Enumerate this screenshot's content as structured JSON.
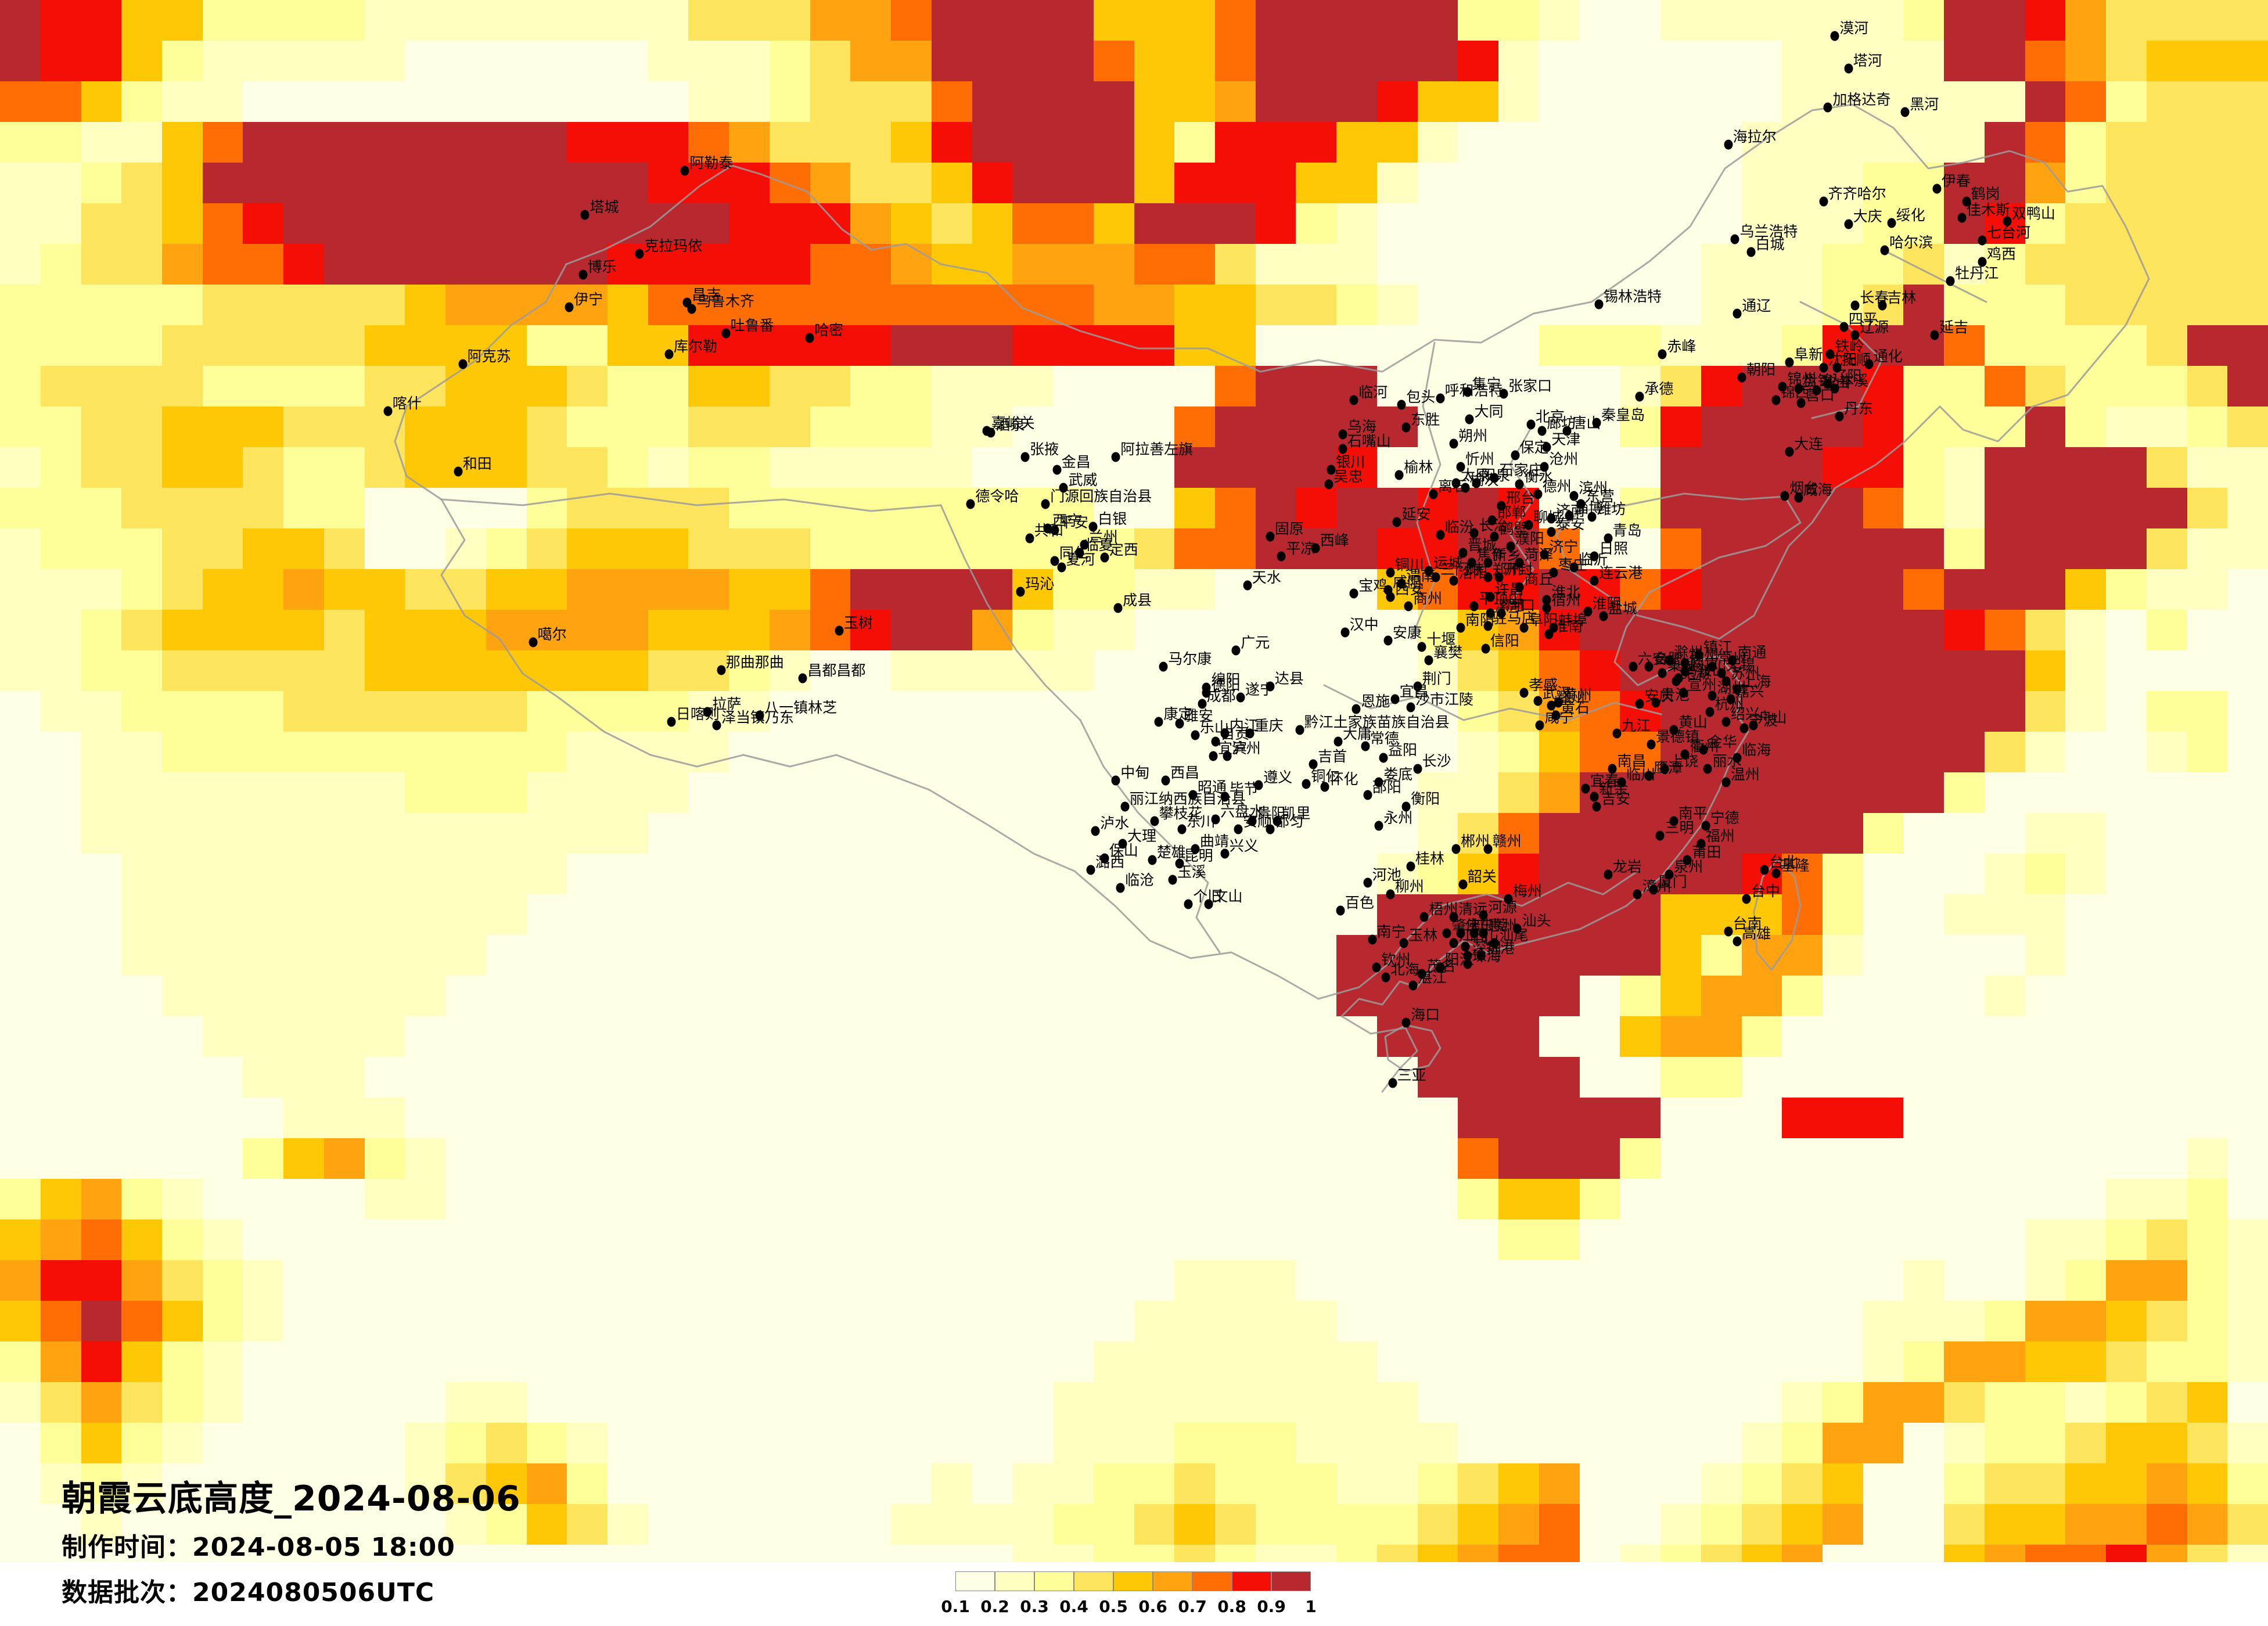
{
  "header": {
    "title": "朝霞云底高度_2024-08-06",
    "made_time": "制作时间：2024-08-05 18:00",
    "batch": "数据批次：2024080506UTC"
  },
  "legend": {
    "ticks": [
      "0.1",
      "0.2",
      "0.3",
      "0.4",
      "0.5",
      "0.6",
      "0.7",
      "0.8",
      "0.9",
      "1"
    ],
    "colors": [
      "#FFFFE6",
      "#FFFFC2",
      "#FFFF99",
      "#FFE45E",
      "#FFC807",
      "#FFA311",
      "#FF6D05",
      "#F50E05",
      "#B7292E"
    ]
  },
  "map": {
    "border_color": "#9B9B9B",
    "white": "#FFFFFF",
    "palette": [
      "#FFFFE6",
      "#FFFFC2",
      "#FFFF99",
      "#FFE45E",
      "#FFC807",
      "#FFA311",
      "#FF6D05",
      "#F50E05",
      "#B7292E"
    ],
    "grid_cols": 56,
    "grid_rows": 40,
    "grid": [
      "87744222211111111333556888844468888822100111111288753333",
      "87742111110000001112355888864468888871000000111188653444",
      "66421100000000000112333688884458887441000000111111862333",
      "22114688888888777653334788884277744100000001111118623333",
      "11234888888888887776533478884777441000000001112288523333",
      "11334678888888888877754346648887210000000001112287233333",
      "12335667888888877777665445556631110000000011122312333333",
      "22222333334555546666666666655443321000000011123822233333",
      "22223333344442244777778887777440000000222111278862222388",
      "23333222233444322443322111000068880000001378887226322238",
      "22334443334443222333222110000688888000002788887222821123",
      "12334432234443321221111100000888870000000888877218888311",
      "22233332200002333322222222200468788787002888886218888831",
      "12223344300123444333222222223668887788600688888828888311",
      "11123445443344555544688884221100004677876788888688842110",
      "11234444344455554445678852110000000245788888888876310200",
      "11223333344444443321001111100000000134678888888888410000",
      "01122223333332222110000000000000000023567888888888310220",
      "00112222222222111100000000000000000012466888888883100120",
      "00111111112221111000000000000000000113588888888820000000",
      "00111111111111110000000000000000000136888888882000110000",
      "00011111111111000000000000000000001247888887620001210000",
      "00011111111110000000000000000000008888888444620011100000",
      "00011111111100000000000000000000088888888425510000100000",
      "00001111111000000000000000000000088888802455200001000000",
      "00000111110000000000000000000000008888004552000000000000",
      "00000011100000000000000000000000000888800220000000000000",
      "00000001110000000000000000000000000088888000777000000000",
      "00000024521000000000000000000000000068882000000000000010",
      "24521000011000000000000000000000000024420000000000001120",
      "45642100000000000000000000000000000002200000000000112321",
      "57753210000000000000000000000111000000000000000100125521",
      "46864210000000000000000000001111100000000000001112554321",
      "25742100000000000000000000011111110000000000001255443221",
      "13532100000110000000000000111111111000000000125532212340",
      "02421000001232100000000000111222111100000001255012234431",
      "01210000001345200000000101122322211234500012340023344542",
      "00100000000124310000001111223432222345600123450034455653",
      "00000000000000000000000001122321123456601234500045667531",
      "........................................................"
    ]
  },
  "cities": [
    [
      "漠河",
      80.9,
      2.2
    ],
    [
      "塔河",
      81.5,
      4.2
    ],
    [
      "黑河",
      84.0,
      6.9
    ],
    [
      "加格达奇",
      80.6,
      6.6
    ],
    [
      "海拉尔",
      76.2,
      8.9
    ],
    [
      "齐齐哈尔",
      80.4,
      12.4
    ],
    [
      "大庆",
      81.5,
      13.8
    ],
    [
      "绥化",
      83.4,
      13.7
    ],
    [
      "伊春",
      85.4,
      11.6
    ],
    [
      "鹤岗",
      86.7,
      12.4
    ],
    [
      "佳木斯",
      86.5,
      13.4
    ],
    [
      "双鸭山",
      88.5,
      13.6
    ],
    [
      "七台河",
      87.4,
      14.8
    ],
    [
      "鸡西",
      87.4,
      16.1
    ],
    [
      "哈尔滨",
      83.1,
      15.4
    ],
    [
      "牡丹江",
      86.0,
      17.3
    ],
    [
      "延吉",
      85.3,
      20.6
    ],
    [
      "通化",
      82.4,
      22.4
    ],
    [
      "长春",
      81.8,
      18.8
    ],
    [
      "吉林",
      83.0,
      18.8
    ],
    [
      "四平",
      81.3,
      20.1
    ],
    [
      "辽源",
      81.8,
      20.6
    ],
    [
      "乌兰浩特",
      76.5,
      14.7
    ],
    [
      "白城",
      77.2,
      15.5
    ],
    [
      "通辽",
      76.6,
      19.3
    ],
    [
      "铁岭",
      80.7,
      21.8
    ],
    [
      "抚顺",
      81.0,
      22.6
    ],
    [
      "沈阳",
      80.4,
      22.6
    ],
    [
      "本溪",
      80.9,
      23.9
    ],
    [
      "辽阳",
      80.6,
      23.6
    ],
    [
      "鞍山",
      80.1,
      24.0
    ],
    [
      "营口",
      79.4,
      24.8
    ],
    [
      "盘锦",
      79.3,
      23.9
    ],
    [
      "锦州",
      78.6,
      23.8
    ],
    [
      "锦西",
      78.3,
      24.6
    ],
    [
      "阜新",
      78.9,
      22.3
    ],
    [
      "朝阳",
      76.8,
      23.2
    ],
    [
      "丹东",
      81.1,
      25.6
    ],
    [
      "大连",
      78.9,
      27.8
    ],
    [
      "锡林浩特",
      70.5,
      18.7
    ],
    [
      "赤峰",
      73.3,
      21.8
    ],
    [
      "承德",
      72.3,
      24.4
    ],
    [
      "秦皇岛",
      70.4,
      26.0
    ],
    [
      "唐山",
      69.1,
      26.5
    ],
    [
      "北京",
      67.5,
      26.1
    ],
    [
      "廊坊",
      68.0,
      26.5
    ],
    [
      "天津",
      68.2,
      27.5
    ],
    [
      "保定",
      66.8,
      28.0
    ],
    [
      "沧州",
      68.1,
      28.7
    ],
    [
      "石家庄",
      65.9,
      29.4
    ],
    [
      "衡水",
      67.0,
      29.8
    ],
    [
      "邢台",
      66.2,
      31.1
    ],
    [
      "邯郸",
      65.8,
      32.0
    ],
    [
      "张家口",
      66.3,
      24.2
    ],
    [
      "大同",
      64.8,
      25.8
    ],
    [
      "朔州",
      64.1,
      27.3
    ],
    [
      "忻州",
      64.4,
      28.7
    ],
    [
      "太原",
      64.2,
      29.7
    ],
    [
      "榆次",
      64.6,
      30.0
    ],
    [
      "阳泉",
      65.1,
      29.7
    ],
    [
      "离石",
      63.2,
      30.4
    ],
    [
      "临汾",
      63.5,
      32.9
    ],
    [
      "长治",
      65.0,
      32.8
    ],
    [
      "晋城",
      64.5,
      34.0
    ],
    [
      "运城",
      63.0,
      35.1
    ],
    [
      "集宁",
      64.7,
      24.1
    ],
    [
      "呼和浩特",
      63.5,
      24.5
    ],
    [
      "包头",
      61.8,
      24.9
    ],
    [
      "东胜",
      62.0,
      26.3
    ],
    [
      "临河",
      59.7,
      24.6
    ],
    [
      "乌海",
      59.2,
      26.7
    ],
    [
      "石嘴山",
      59.2,
      27.6
    ],
    [
      "银川",
      58.7,
      28.9
    ],
    [
      "吴忠",
      58.6,
      29.8
    ],
    [
      "榆林",
      61.7,
      29.2
    ],
    [
      "延安",
      61.6,
      32.1
    ],
    [
      "德州",
      67.8,
      30.4
    ],
    [
      "滨州",
      69.4,
      30.5
    ],
    [
      "东营",
      69.7,
      31.0
    ],
    [
      "济南",
      68.4,
      31.9
    ],
    [
      "淄博",
      69.2,
      31.7
    ],
    [
      "潍坊",
      70.2,
      31.8
    ],
    [
      "烟台",
      78.7,
      30.5
    ],
    [
      "威海",
      79.3,
      30.6
    ],
    [
      "青岛",
      70.9,
      33.1
    ],
    [
      "日照",
      70.3,
      34.2
    ],
    [
      "泰安",
      68.4,
      32.7
    ],
    [
      "聊城",
      67.4,
      32.3
    ],
    [
      "菏泽",
      67.0,
      34.6
    ],
    [
      "济宁",
      68.1,
      34.1
    ],
    [
      "枣庄",
      68.5,
      35.2
    ],
    [
      "临沂",
      69.4,
      34.9
    ],
    [
      "连云港",
      70.3,
      35.7
    ],
    [
      "濮阳",
      66.6,
      33.6
    ],
    [
      "鹤壁",
      65.9,
      33.0
    ],
    [
      "新乡",
      65.6,
      34.6
    ],
    [
      "焦作",
      64.9,
      34.6
    ],
    [
      "郑州",
      65.6,
      35.5
    ],
    [
      "开封",
      66.1,
      35.5
    ],
    [
      "洛阳",
      64.1,
      35.7
    ],
    [
      "三门峡",
      63.3,
      35.5
    ],
    [
      "许昌",
      65.7,
      36.7
    ],
    [
      "平顶山",
      65.0,
      37.3
    ],
    [
      "漯河",
      65.7,
      37.7
    ],
    [
      "周口",
      66.2,
      37.7
    ],
    [
      "驻马店",
      65.6,
      38.5
    ],
    [
      "信阳",
      65.5,
      39.9
    ],
    [
      "商丘",
      67.0,
      36.1
    ],
    [
      "淮北",
      68.2,
      36.9
    ],
    [
      "宿州",
      68.2,
      37.4
    ],
    [
      "蚌埠",
      68.5,
      38.6
    ],
    [
      "阜阳",
      67.2,
      38.6
    ],
    [
      "淮南",
      68.3,
      39.0
    ],
    [
      "淮阴",
      70.0,
      37.6
    ],
    [
      "盐城",
      70.7,
      37.9
    ],
    [
      "扬州",
      74.3,
      40.8
    ],
    [
      "滁州",
      73.6,
      40.6
    ],
    [
      "镇江",
      74.9,
      40.3
    ],
    [
      "常州",
      75.5,
      41.0
    ],
    [
      "无锡",
      75.9,
      41.4
    ],
    [
      "苏州",
      76.1,
      41.9
    ],
    [
      "南通",
      76.4,
      40.6
    ],
    [
      "上海",
      76.6,
      42.4
    ],
    [
      "南京",
      74.3,
      41.3
    ],
    [
      "合肥",
      72.7,
      41.0
    ],
    [
      "六安",
      72.0,
      41.0
    ],
    [
      "巢湖",
      73.3,
      41.4
    ],
    [
      "马鞍山",
      74.0,
      41.7
    ],
    [
      "芜湖",
      73.9,
      41.9
    ],
    [
      "宣州",
      74.2,
      42.6
    ],
    [
      "安庆",
      72.3,
      43.3
    ],
    [
      "贵池",
      73.0,
      43.2
    ],
    [
      "黄山",
      73.8,
      44.9
    ],
    [
      "杭州",
      75.4,
      43.8
    ],
    [
      "湖州",
      75.5,
      42.8
    ],
    [
      "嘉兴",
      76.3,
      43.0
    ],
    [
      "绍兴",
      76.1,
      44.4
    ],
    [
      "宁波",
      76.9,
      44.8
    ],
    [
      "舟山",
      77.3,
      44.6
    ],
    [
      "西安",
      61.3,
      36.7
    ],
    [
      "咸阳",
      61.2,
      36.3
    ],
    [
      "渭南",
      61.8,
      35.9
    ],
    [
      "铜川",
      61.3,
      35.2
    ],
    [
      "宝鸡",
      59.7,
      36.5
    ],
    [
      "商州",
      62.1,
      37.3
    ],
    [
      "汉中",
      59.3,
      38.9
    ],
    [
      "安康",
      61.2,
      39.4
    ],
    [
      "十堰",
      62.7,
      39.8
    ],
    [
      "襄樊",
      63.0,
      40.6
    ],
    [
      "南阳",
      64.4,
      38.6
    ],
    [
      "荆门",
      62.5,
      42.2
    ],
    [
      "宜昌",
      61.5,
      43.0
    ],
    [
      "沙市江陵",
      62.2,
      43.5
    ],
    [
      "恩施",
      59.8,
      43.6
    ],
    [
      "黔江土家族苗族自治县",
      57.3,
      44.9
    ],
    [
      "武汉",
      67.8,
      43.1
    ],
    [
      "孝感",
      67.2,
      42.6
    ],
    [
      "鄂州",
      68.4,
      43.4
    ],
    [
      "黄州",
      68.7,
      43.2
    ],
    [
      "黄石",
      68.6,
      44.0
    ],
    [
      "咸宁",
      67.9,
      44.6
    ],
    [
      "大庸",
      59.0,
      45.6
    ],
    [
      "常德",
      60.2,
      45.9
    ],
    [
      "益阳",
      61.0,
      46.6
    ],
    [
      "长沙",
      62.5,
      47.3
    ],
    [
      "吉首",
      57.9,
      47.0
    ],
    [
      "怀化",
      58.4,
      48.4
    ],
    [
      "铜仁",
      57.6,
      48.2
    ],
    [
      "娄底",
      60.8,
      48.1
    ],
    [
      "邵阳",
      60.3,
      48.9
    ],
    [
      "衡阳",
      62.0,
      49.6
    ],
    [
      "永州",
      60.8,
      50.8
    ],
    [
      "郴州",
      64.2,
      52.2
    ],
    [
      "固原",
      56.0,
      33.0
    ],
    [
      "平凉",
      56.5,
      34.2
    ],
    [
      "西峰",
      58.0,
      33.7
    ],
    [
      "天水",
      55.0,
      36.0
    ],
    [
      "成县",
      49.3,
      37.4
    ],
    [
      "嘉峪关",
      43.5,
      26.5
    ],
    [
      "酒泉",
      43.7,
      26.6
    ],
    [
      "张掖",
      45.2,
      28.1
    ],
    [
      "金昌",
      46.6,
      28.9
    ],
    [
      "武威",
      46.9,
      30.0
    ],
    [
      "阿拉善左旗",
      49.2,
      28.1
    ],
    [
      "白银",
      48.2,
      32.4
    ],
    [
      "兰州",
      47.8,
      33.5
    ],
    [
      "临夏",
      47.6,
      34.0
    ],
    [
      "定西",
      48.7,
      34.3
    ],
    [
      "德令哈",
      42.8,
      31.0
    ],
    [
      "门源回族自治县",
      46.1,
      31.0
    ],
    [
      "西宁",
      46.2,
      32.5
    ],
    [
      "平安",
      46.5,
      32.6
    ],
    [
      "共和",
      45.4,
      33.1
    ],
    [
      "同仁",
      46.5,
      34.5
    ],
    [
      "夏河",
      46.8,
      34.9
    ],
    [
      "玛沁",
      45.0,
      36.4
    ],
    [
      "玉树",
      37.0,
      38.8
    ],
    [
      "乌鲁木齐",
      30.5,
      19.0
    ],
    [
      "昌吉",
      30.3,
      18.6
    ],
    [
      "吐鲁番",
      32.0,
      20.5
    ],
    [
      "哈密",
      35.7,
      20.8
    ],
    [
      "克拉玛依",
      28.2,
      15.6
    ],
    [
      "博乐",
      25.7,
      16.9
    ],
    [
      "伊宁",
      25.1,
      18.9
    ],
    [
      "塔城",
      25.8,
      13.2
    ],
    [
      "阿勒泰",
      30.2,
      10.5
    ],
    [
      "库尔勒",
      29.5,
      21.8
    ],
    [
      "阿克苏",
      20.4,
      22.4
    ],
    [
      "喀什",
      17.1,
      25.3
    ],
    [
      "和田",
      20.2,
      29.0
    ],
    [
      "噶尔",
      23.5,
      39.5
    ],
    [
      "那曲那曲",
      31.8,
      41.2
    ],
    [
      "昌都昌都",
      35.4,
      41.7
    ],
    [
      "拉萨",
      31.2,
      43.8
    ],
    [
      "日喀则",
      29.6,
      44.4
    ],
    [
      "泽当镇乃东",
      31.6,
      44.6
    ],
    [
      "八一镇林芝",
      33.5,
      44.0
    ],
    [
      "马尔康",
      51.3,
      41.0
    ],
    [
      "广元",
      54.5,
      40.0
    ],
    [
      "绵阳",
      53.2,
      42.3
    ],
    [
      "德阳",
      53.2,
      42.6
    ],
    [
      "成都",
      53.0,
      43.3
    ],
    [
      "遂宁",
      54.7,
      42.9
    ],
    [
      "达县",
      56.0,
      42.2
    ],
    [
      "康定",
      51.1,
      44.4
    ],
    [
      "雅安",
      52.0,
      44.5
    ],
    [
      "乐山",
      52.7,
      45.2
    ],
    [
      "自贡",
      53.6,
      45.6
    ],
    [
      "内江",
      54.0,
      45.1
    ],
    [
      "宜宾",
      53.5,
      46.5
    ],
    [
      "泸州",
      54.1,
      46.5
    ],
    [
      "重庆",
      55.1,
      45.1
    ],
    [
      "遵义",
      55.5,
      48.3
    ],
    [
      "毕节",
      54.0,
      49.0
    ],
    [
      "贵阳",
      55.2,
      50.5
    ],
    [
      "安顺",
      54.6,
      51.0
    ],
    [
      "六盘水",
      53.6,
      50.4
    ],
    [
      "凯里",
      56.3,
      50.5
    ],
    [
      "都匀",
      56.0,
      51.0
    ],
    [
      "兴义",
      54.0,
      52.5
    ],
    [
      "西昌",
      51.4,
      48.0
    ],
    [
      "攀枝花",
      50.9,
      50.5
    ],
    [
      "昭通",
      52.6,
      48.9
    ],
    [
      "中甸",
      49.2,
      48.0
    ],
    [
      "丽江纳西族自治县",
      49.6,
      49.6
    ],
    [
      "泸水",
      48.3,
      51.1
    ],
    [
      "大理",
      49.5,
      51.9
    ],
    [
      "保山",
      48.7,
      52.8
    ],
    [
      "潞西",
      48.1,
      53.5
    ],
    [
      "临沧",
      49.4,
      54.6
    ],
    [
      "楚雄",
      50.8,
      52.9
    ],
    [
      "昆明",
      52.0,
      53.1
    ],
    [
      "玉溪",
      51.7,
      54.1
    ],
    [
      "东川",
      52.1,
      51.0
    ],
    [
      "曲靖",
      52.7,
      52.2
    ],
    [
      "个旧",
      52.4,
      55.6
    ],
    [
      "文山",
      53.3,
      55.6
    ],
    [
      "河池",
      60.3,
      54.3
    ],
    [
      "百色",
      59.1,
      56.0
    ],
    [
      "南宁",
      60.5,
      57.8
    ],
    [
      "柳州",
      61.3,
      55.0
    ],
    [
      "桂林",
      62.2,
      53.3
    ],
    [
      "梧州",
      62.8,
      56.4
    ],
    [
      "玉林",
      61.9,
      58.0
    ],
    [
      "钦州",
      60.7,
      59.5
    ],
    [
      "北海",
      61.1,
      60.1
    ],
    [
      "湛江",
      62.3,
      60.6
    ],
    [
      "茂名",
      62.7,
      59.9
    ],
    [
      "阳江",
      63.5,
      59.5
    ],
    [
      "海口",
      62.0,
      62.9
    ],
    [
      "三亚",
      61.4,
      66.6
    ],
    [
      "韶关",
      64.5,
      54.4
    ],
    [
      "清远",
      64.1,
      56.4
    ],
    [
      "河源",
      65.4,
      56.3
    ],
    [
      "梅州",
      66.5,
      55.3
    ],
    [
      "汕头",
      66.9,
      57.1
    ],
    [
      "汕尾",
      65.9,
      58.0
    ],
    [
      "惠州",
      65.4,
      57.4
    ],
    [
      "东莞",
      65.0,
      57.4
    ],
    [
      "深圳",
      64.7,
      58.8
    ],
    [
      "香港",
      65.3,
      58.8
    ],
    [
      "珠海",
      64.7,
      59.3
    ],
    [
      "中山",
      64.6,
      58.2
    ],
    [
      "江门",
      64.1,
      58.0
    ],
    [
      "佛山",
      64.4,
      57.4
    ],
    [
      "肇庆",
      63.8,
      57.4
    ],
    [
      "赣州",
      65.6,
      52.2
    ],
    [
      "龙岩",
      70.9,
      53.8
    ],
    [
      "漳州",
      72.2,
      55.0
    ],
    [
      "厦门",
      72.9,
      54.7
    ],
    [
      "泉州",
      73.6,
      53.8
    ],
    [
      "莆田",
      74.4,
      52.9
    ],
    [
      "福州",
      75.0,
      51.9
    ],
    [
      "宁德",
      75.2,
      50.8
    ],
    [
      "南平",
      73.8,
      50.5
    ],
    [
      "三明",
      73.2,
      51.4
    ],
    [
      "温州",
      76.1,
      48.1
    ],
    [
      "丽水",
      75.3,
      47.3
    ],
    [
      "临海",
      76.6,
      46.6
    ],
    [
      "金华",
      75.1,
      46.1
    ],
    [
      "衢州",
      74.3,
      46.4
    ],
    [
      "上饶",
      73.4,
      47.3
    ],
    [
      "鹰潭",
      72.7,
      47.7
    ],
    [
      "景德镇",
      72.8,
      45.8
    ],
    [
      "九江",
      71.3,
      45.1
    ],
    [
      "南昌",
      71.1,
      47.3
    ],
    [
      "临川",
      71.5,
      48.1
    ],
    [
      "新余",
      70.3,
      49.0
    ],
    [
      "宜春",
      69.9,
      48.5
    ],
    [
      "吉安",
      70.4,
      49.6
    ],
    [
      "台北",
      77.8,
      53.5
    ],
    [
      "基隆",
      78.3,
      53.7
    ],
    [
      "台中",
      77.0,
      55.3
    ],
    [
      "台南",
      76.2,
      57.3
    ],
    [
      "高雄",
      76.6,
      57.9
    ]
  ]
}
